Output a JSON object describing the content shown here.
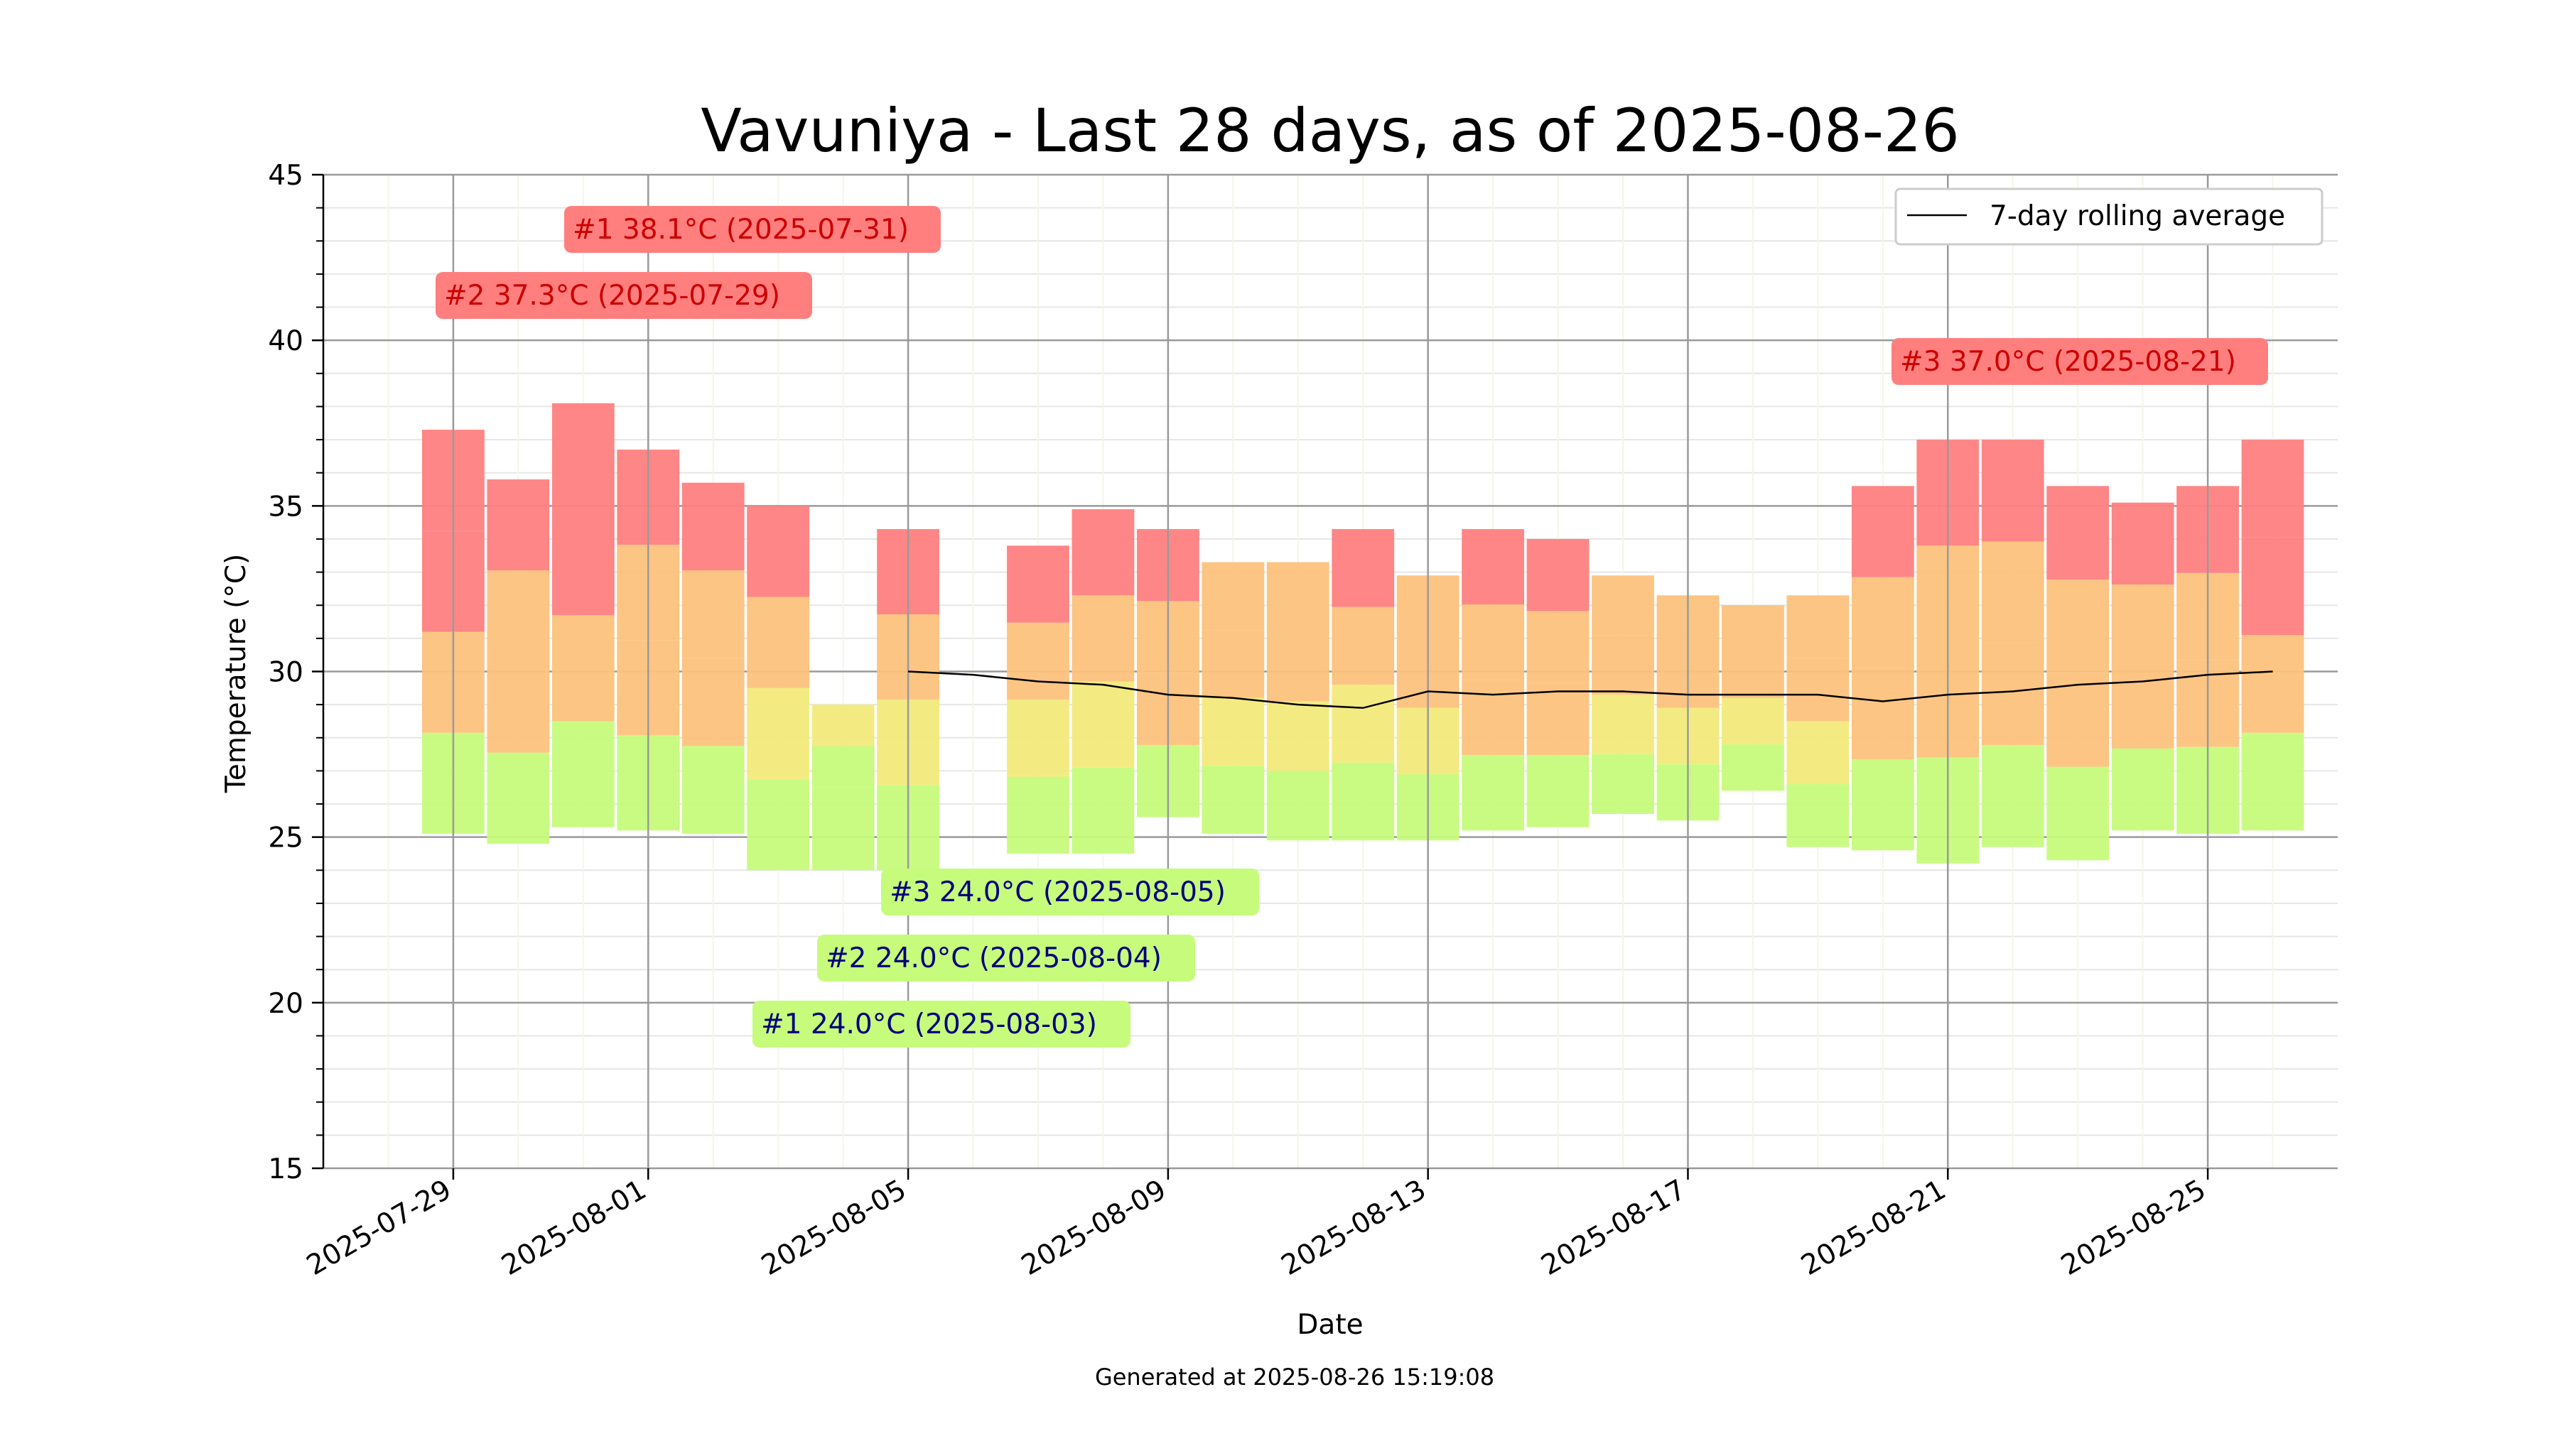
{
  "chart_data": {
    "type": "bar",
    "title": "Vavuniya - Last 28 days, as of 2025-08-26",
    "xlabel": "Date",
    "ylabel": "Temperature (°C)",
    "footer": "Generated at 2025-08-26 15:19:08",
    "ylim": [
      15,
      45
    ],
    "xlim": [
      "2025-07-27",
      "2025-08-27"
    ],
    "yticks": [
      "15",
      "20",
      "25",
      "30",
      "35",
      "40",
      "45"
    ],
    "xtick_dates": [
      "2025-07-29",
      "2025-08-01",
      "2025-08-05",
      "2025-08-09",
      "2025-08-13",
      "2025-08-17",
      "2025-08-21",
      "2025-08-25"
    ],
    "legend": {
      "label": "7-day rolling average",
      "position": "top-right"
    },
    "grid": true,
    "colors": {
      "hot": "#ff7f7f",
      "warm": "#fcc27c",
      "mild": "#f2ea7a",
      "cool": "#c6fb7c",
      "avg_line": "#000000",
      "max_label_bg": "#ff7f7f",
      "max_label_text": "#cc0000",
      "min_label_bg": "#c6fb7c",
      "min_label_text": "#00007f"
    },
    "days": [
      {
        "date": "2025-07-29",
        "min": 25.1,
        "max": 37.3
      },
      {
        "date": "2025-07-30",
        "min": 24.8,
        "max": 35.8
      },
      {
        "date": "2025-07-31",
        "min": 25.3,
        "max": 38.1
      },
      {
        "date": "2025-08-01",
        "min": 25.2,
        "max": 36.7
      },
      {
        "date": "2025-08-02",
        "min": 25.1,
        "max": 35.7
      },
      {
        "date": "2025-08-03",
        "min": 24.0,
        "max": 35.0
      },
      {
        "date": "2025-08-04",
        "min": 24.0,
        "max": 29.0
      },
      {
        "date": "2025-08-05",
        "min": 24.0,
        "max": 34.3
      },
      {
        "date": "2025-08-06",
        "min": null,
        "max": null
      },
      {
        "date": "2025-08-07",
        "min": 24.5,
        "max": 33.8
      },
      {
        "date": "2025-08-08",
        "min": 24.5,
        "max": 34.9
      },
      {
        "date": "2025-08-09",
        "min": 25.6,
        "max": 34.3
      },
      {
        "date": "2025-08-10",
        "min": 25.1,
        "max": 33.3
      },
      {
        "date": "2025-08-11",
        "min": 24.9,
        "max": 33.3
      },
      {
        "date": "2025-08-12",
        "min": 24.9,
        "max": 34.3
      },
      {
        "date": "2025-08-13",
        "min": 24.9,
        "max": 32.9
      },
      {
        "date": "2025-08-14",
        "min": 25.2,
        "max": 34.3
      },
      {
        "date": "2025-08-15",
        "min": 25.3,
        "max": 34.0
      },
      {
        "date": "2025-08-16",
        "min": 25.7,
        "max": 32.9
      },
      {
        "date": "2025-08-17",
        "min": 25.5,
        "max": 32.3
      },
      {
        "date": "2025-08-18",
        "min": 26.4,
        "max": 32.0
      },
      {
        "date": "2025-08-19",
        "min": 24.7,
        "max": 32.3
      },
      {
        "date": "2025-08-20",
        "min": 24.6,
        "max": 35.6
      },
      {
        "date": "2025-08-21",
        "min": 24.2,
        "max": 37.0
      },
      {
        "date": "2025-08-22",
        "min": 24.7,
        "max": 37.0
      },
      {
        "date": "2025-08-23",
        "min": 24.3,
        "max": 35.6
      },
      {
        "date": "2025-08-24",
        "min": 25.2,
        "max": 35.1
      },
      {
        "date": "2025-08-25",
        "min": 25.1,
        "max": 35.6
      },
      {
        "date": "2025-08-26",
        "min": 25.2,
        "max": 37.0
      }
    ],
    "rolling_average": [
      {
        "date": "2025-08-05",
        "value": 30.0
      },
      {
        "date": "2025-08-06",
        "value": 29.9
      },
      {
        "date": "2025-08-07",
        "value": 29.7
      },
      {
        "date": "2025-08-08",
        "value": 29.6
      },
      {
        "date": "2025-08-09",
        "value": 29.3
      },
      {
        "date": "2025-08-10",
        "value": 29.2
      },
      {
        "date": "2025-08-11",
        "value": 29.0
      },
      {
        "date": "2025-08-12",
        "value": 28.9
      },
      {
        "date": "2025-08-13",
        "value": 29.4
      },
      {
        "date": "2025-08-14",
        "value": 29.3
      },
      {
        "date": "2025-08-15",
        "value": 29.4
      },
      {
        "date": "2025-08-16",
        "value": 29.4
      },
      {
        "date": "2025-08-17",
        "value": 29.3
      },
      {
        "date": "2025-08-18",
        "value": 29.3
      },
      {
        "date": "2025-08-19",
        "value": 29.3
      },
      {
        "date": "2025-08-20",
        "value": 29.1
      },
      {
        "date": "2025-08-21",
        "value": 29.3
      },
      {
        "date": "2025-08-22",
        "value": 29.4
      },
      {
        "date": "2025-08-23",
        "value": 29.6
      },
      {
        "date": "2025-08-24",
        "value": 29.7
      },
      {
        "date": "2025-08-25",
        "value": 29.9
      },
      {
        "date": "2025-08-26",
        "value": 30.0
      }
    ],
    "annotations": [
      {
        "kind": "max",
        "text": "#1 38.1°C (2025-07-31)"
      },
      {
        "kind": "max",
        "text": "#2 37.3°C (2025-07-29)"
      },
      {
        "kind": "max",
        "text": "#3 37.0°C (2025-08-21)"
      },
      {
        "kind": "min",
        "text": "#3 24.0°C (2025-08-05)"
      },
      {
        "kind": "min",
        "text": "#2 24.0°C (2025-08-04)"
      },
      {
        "kind": "min",
        "text": "#1 24.0°C (2025-08-03)"
      }
    ]
  }
}
